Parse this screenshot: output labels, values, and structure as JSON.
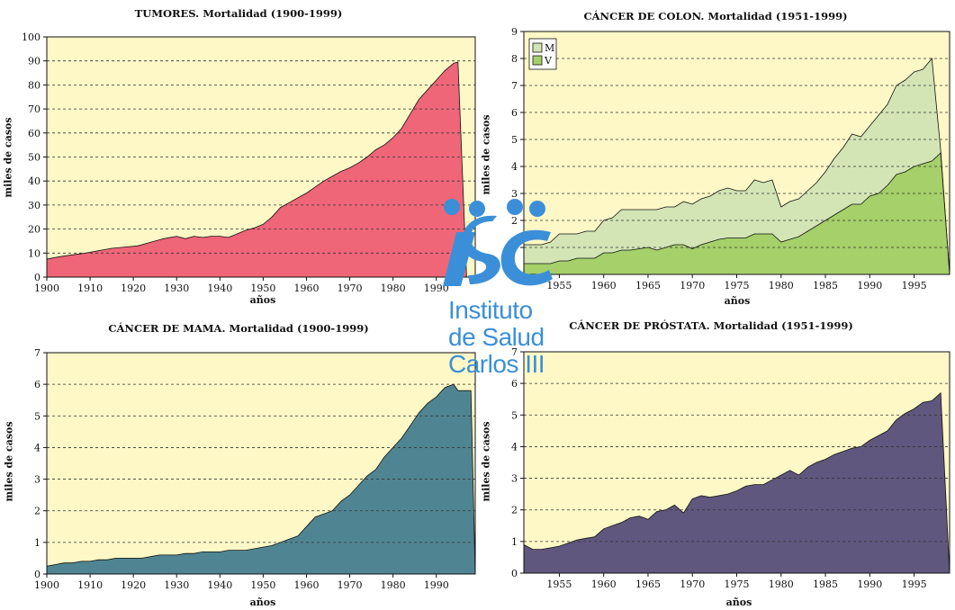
{
  "colors": {
    "plot_bg": "#fdf8c6",
    "grid": "#333333",
    "logo": "#3b8fd8"
  },
  "logo": {
    "name": "Instituto de Salud Carlos III",
    "lines": [
      "Instituto",
      "de Salud",
      "Carlos III"
    ]
  },
  "chart_data": [
    {
      "id": "tumores",
      "type": "area",
      "title": "TUMORES. Mortalidad (1900-1999)",
      "xlabel": "años",
      "ylabel": "miles de casos",
      "xlim": [
        1900,
        1999
      ],
      "ylim": [
        0,
        100
      ],
      "yticks": [
        0,
        10,
        20,
        30,
        40,
        50,
        60,
        70,
        80,
        90,
        100
      ],
      "xticks": [
        1900,
        1910,
        1920,
        1930,
        1940,
        1950,
        1960,
        1970,
        1980,
        1990
      ],
      "xtick_labels": [
        "1900",
        "1910",
        "1920",
        "1930",
        "1940",
        "1950",
        "1960",
        "1970",
        "1980",
        "1990"
      ],
      "grid": "horizontal dashed",
      "series": [
        {
          "color": "#ee6678",
          "x": [
            1900,
            1903,
            1906,
            1909,
            1912,
            1915,
            1918,
            1921,
            1924,
            1927,
            1930,
            1932,
            1934,
            1936,
            1938,
            1940,
            1942,
            1944,
            1946,
            1948,
            1950,
            1952,
            1954,
            1956,
            1958,
            1960,
            1962,
            1964,
            1966,
            1968,
            1970,
            1972,
            1974,
            1976,
            1978,
            1980,
            1982,
            1984,
            1986,
            1988,
            1990,
            1992,
            1994,
            1995,
            1997
          ],
          "values": [
            7.5,
            8.5,
            9.3,
            10,
            11,
            12,
            12.5,
            13,
            14.5,
            16,
            17,
            16,
            17,
            16.5,
            17,
            17,
            16.5,
            18,
            19.5,
            20.5,
            22,
            25,
            29,
            31,
            33,
            35,
            37.5,
            40,
            42,
            44,
            45.5,
            47.5,
            50,
            53,
            55,
            58,
            62,
            68,
            74,
            78,
            82,
            86,
            89,
            89.5,
            0
          ]
        }
      ]
    },
    {
      "id": "colon",
      "type": "area",
      "title": "CÁNCER DE COLON. Mortalidad (1951-1999)",
      "xlabel": "años",
      "ylabel": "miles de casos",
      "xlim": [
        1951,
        1999
      ],
      "ylim": [
        0,
        9
      ],
      "yticks": [
        0,
        1,
        2,
        3,
        4,
        5,
        6,
        7,
        8,
        9
      ],
      "xticks": [
        1955,
        1960,
        1965,
        1970,
        1975,
        1980,
        1985,
        1990,
        1995
      ],
      "xtick_labels": [
        "1955",
        "1960",
        "1965",
        "1970",
        "1975",
        "1980",
        "1985",
        "1990",
        "1995"
      ],
      "grid": "horizontal dashed",
      "legend": {
        "position": "top-left"
      },
      "series": [
        {
          "name": "M",
          "color": "#d3e5b5",
          "x": [
            1951,
            1952,
            1953,
            1954,
            1955,
            1956,
            1957,
            1958,
            1959,
            1960,
            1961,
            1962,
            1963,
            1964,
            1965,
            1966,
            1967,
            1968,
            1969,
            1970,
            1971,
            1972,
            1973,
            1974,
            1975,
            1976,
            1977,
            1978,
            1979,
            1980,
            1981,
            1982,
            1983,
            1984,
            1985,
            1986,
            1987,
            1988,
            1989,
            1990,
            1991,
            1992,
            1993,
            1994,
            1995,
            1996,
            1997,
            1998,
            1999
          ],
          "values": [
            1.1,
            1.1,
            1.1,
            1.2,
            1.5,
            1.5,
            1.5,
            1.6,
            1.6,
            2.0,
            2.1,
            2.4,
            2.4,
            2.4,
            2.4,
            2.4,
            2.5,
            2.5,
            2.7,
            2.6,
            2.8,
            2.9,
            3.1,
            3.2,
            3.1,
            3.1,
            3.5,
            3.4,
            3.5,
            2.5,
            2.7,
            2.8,
            3.1,
            3.4,
            3.8,
            4.3,
            4.7,
            5.2,
            5.1,
            5.5,
            5.9,
            6.3,
            7.0,
            7.2,
            7.5,
            7.6,
            8.0,
            4.6,
            0
          ]
        },
        {
          "name": "V",
          "color": "#a5d06a",
          "x": [
            1951,
            1952,
            1953,
            1954,
            1955,
            1956,
            1957,
            1958,
            1959,
            1960,
            1961,
            1962,
            1963,
            1964,
            1965,
            1966,
            1967,
            1968,
            1969,
            1970,
            1971,
            1972,
            1973,
            1974,
            1975,
            1976,
            1977,
            1978,
            1979,
            1980,
            1981,
            1982,
            1983,
            1984,
            1985,
            1986,
            1987,
            1988,
            1989,
            1990,
            1991,
            1992,
            1993,
            1994,
            1995,
            1996,
            1997,
            1998,
            1999
          ],
          "values": [
            0.4,
            0.4,
            0.4,
            0.4,
            0.5,
            0.5,
            0.6,
            0.6,
            0.6,
            0.8,
            0.8,
            0.9,
            0.9,
            0.95,
            1.0,
            0.9,
            1.0,
            1.1,
            1.1,
            0.95,
            1.1,
            1.2,
            1.3,
            1.35,
            1.35,
            1.35,
            1.5,
            1.5,
            1.5,
            1.2,
            1.3,
            1.4,
            1.6,
            1.8,
            2.0,
            2.2,
            2.4,
            2.6,
            2.6,
            2.9,
            3.0,
            3.3,
            3.7,
            3.8,
            4.0,
            4.1,
            4.2,
            4.5,
            0
          ]
        }
      ]
    },
    {
      "id": "mama",
      "type": "area",
      "title": "CÁNCER DE MAMA. Mortalidad (1900-1999)",
      "xlabel": "años",
      "ylabel": "miles de casos",
      "xlim": [
        1900,
        1999
      ],
      "ylim": [
        0,
        7
      ],
      "yticks": [
        0,
        1,
        2,
        3,
        4,
        5,
        6,
        7
      ],
      "xticks": [
        1900,
        1910,
        1920,
        1930,
        1940,
        1950,
        1960,
        1970,
        1980,
        1990
      ],
      "xtick_labels": [
        "1900",
        "1910",
        "1920",
        "1930",
        "1940",
        "1950",
        "1960",
        "1970",
        "1980",
        "1990"
      ],
      "grid": "horizontal dashed",
      "series": [
        {
          "color": "#4f8592",
          "x": [
            1900,
            1902,
            1904,
            1906,
            1908,
            1910,
            1912,
            1914,
            1916,
            1918,
            1920,
            1922,
            1924,
            1926,
            1928,
            1930,
            1932,
            1934,
            1936,
            1938,
            1940,
            1942,
            1944,
            1946,
            1948,
            1950,
            1952,
            1954,
            1956,
            1958,
            1960,
            1962,
            1964,
            1966,
            1968,
            1970,
            1972,
            1974,
            1976,
            1978,
            1980,
            1982,
            1984,
            1986,
            1988,
            1990,
            1992,
            1994,
            1995,
            1996,
            1998,
            1999
          ],
          "values": [
            0.25,
            0.3,
            0.35,
            0.35,
            0.4,
            0.4,
            0.45,
            0.45,
            0.5,
            0.5,
            0.5,
            0.5,
            0.55,
            0.6,
            0.6,
            0.6,
            0.65,
            0.65,
            0.7,
            0.7,
            0.7,
            0.75,
            0.75,
            0.75,
            0.8,
            0.85,
            0.9,
            1.0,
            1.1,
            1.2,
            1.5,
            1.8,
            1.9,
            2.0,
            2.3,
            2.5,
            2.8,
            3.1,
            3.3,
            3.7,
            4.0,
            4.3,
            4.7,
            5.1,
            5.4,
            5.6,
            5.9,
            6.0,
            5.8,
            5.8,
            5.8,
            0
          ]
        }
      ]
    },
    {
      "id": "prostata",
      "type": "area",
      "title": "CÁNCER DE PRÓSTATA. Mortalidad (1951-1999)",
      "xlabel": "años",
      "ylabel": "miles de casos",
      "xlim": [
        1951,
        1999
      ],
      "ylim": [
        0,
        7
      ],
      "yticks": [
        0,
        1,
        2,
        3,
        4,
        5,
        6,
        7
      ],
      "xticks": [
        1955,
        1960,
        1965,
        1970,
        1975,
        1980,
        1985,
        1990,
        1995
      ],
      "xtick_labels": [
        "1955",
        "1960",
        "1965",
        "1970",
        "1975",
        "1980",
        "1985",
        "1990",
        "1995"
      ],
      "grid": "horizontal dashed",
      "series": [
        {
          "color": "#5f577d",
          "x": [
            1951,
            1952,
            1953,
            1954,
            1955,
            1956,
            1957,
            1958,
            1959,
            1960,
            1961,
            1962,
            1963,
            1964,
            1965,
            1966,
            1967,
            1968,
            1969,
            1970,
            1971,
            1972,
            1973,
            1974,
            1975,
            1976,
            1977,
            1978,
            1979,
            1980,
            1981,
            1982,
            1983,
            1984,
            1985,
            1986,
            1987,
            1988,
            1989,
            1990,
            1991,
            1992,
            1993,
            1994,
            1995,
            1996,
            1997,
            1998,
            1999
          ],
          "values": [
            0.9,
            0.75,
            0.75,
            0.8,
            0.85,
            0.95,
            1.05,
            1.1,
            1.15,
            1.4,
            1.5,
            1.6,
            1.75,
            1.8,
            1.7,
            1.95,
            2.0,
            2.15,
            1.9,
            2.35,
            2.45,
            2.4,
            2.45,
            2.5,
            2.6,
            2.75,
            2.8,
            2.8,
            2.95,
            3.1,
            3.25,
            3.1,
            3.35,
            3.5,
            3.6,
            3.75,
            3.85,
            3.95,
            4.0,
            4.2,
            4.35,
            4.5,
            4.85,
            5.05,
            5.2,
            5.4,
            5.45,
            5.7,
            0
          ]
        }
      ]
    }
  ]
}
